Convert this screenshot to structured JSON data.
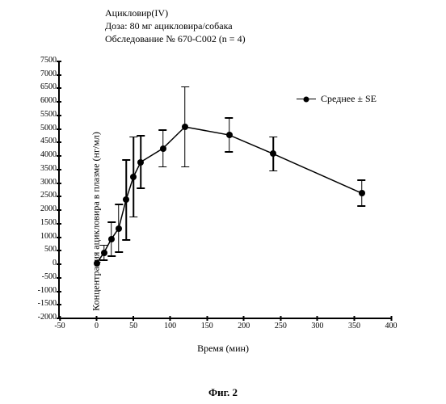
{
  "header": {
    "line1": "Ацикловир(IV)",
    "line2": "Доза: 80 мг ацикловира/собака",
    "line3": "Обследование № 670-C002 (n = 4)"
  },
  "chart": {
    "type": "line-errorbar",
    "xlabel": "Время (мин)",
    "ylabel": "Концентрация ацикловира в плазме (нг/мл)",
    "legend_label": "Среднее ± SE",
    "xlim": [
      -50,
      400
    ],
    "ylim": [
      -2000,
      7500
    ],
    "xticks": [
      -50,
      0,
      50,
      100,
      150,
      200,
      250,
      300,
      350,
      400
    ],
    "yticks": [
      -2000,
      -1500,
      -1000,
      -500,
      0,
      500,
      1000,
      1500,
      2000,
      2500,
      3000,
      3500,
      4000,
      4500,
      5000,
      5500,
      6000,
      6500,
      7000,
      7500
    ],
    "series": [
      {
        "x": 0,
        "y": 0,
        "se": 0
      },
      {
        "x": 10,
        "y": 400,
        "se": 300
      },
      {
        "x": 20,
        "y": 900,
        "se": 650
      },
      {
        "x": 30,
        "y": 1300,
        "se": 900
      },
      {
        "x": 40,
        "y": 2350,
        "se": 1500
      },
      {
        "x": 50,
        "y": 3200,
        "se": 1500
      },
      {
        "x": 60,
        "y": 3750,
        "se": 1000
      },
      {
        "x": 90,
        "y": 4250,
        "se": 700
      },
      {
        "x": 120,
        "y": 5050,
        "se": 1500
      },
      {
        "x": 180,
        "y": 4750,
        "se": 650
      },
      {
        "x": 240,
        "y": 4050,
        "se": 650
      },
      {
        "x": 360,
        "y": 2600,
        "se": 500
      }
    ],
    "marker_color": "#000000",
    "line_color": "#000000",
    "line_width": 1.5,
    "background": "#ffffff",
    "label_fontsize": 12,
    "tick_fontsize": 10
  },
  "figure_caption": "Фиг. 2"
}
